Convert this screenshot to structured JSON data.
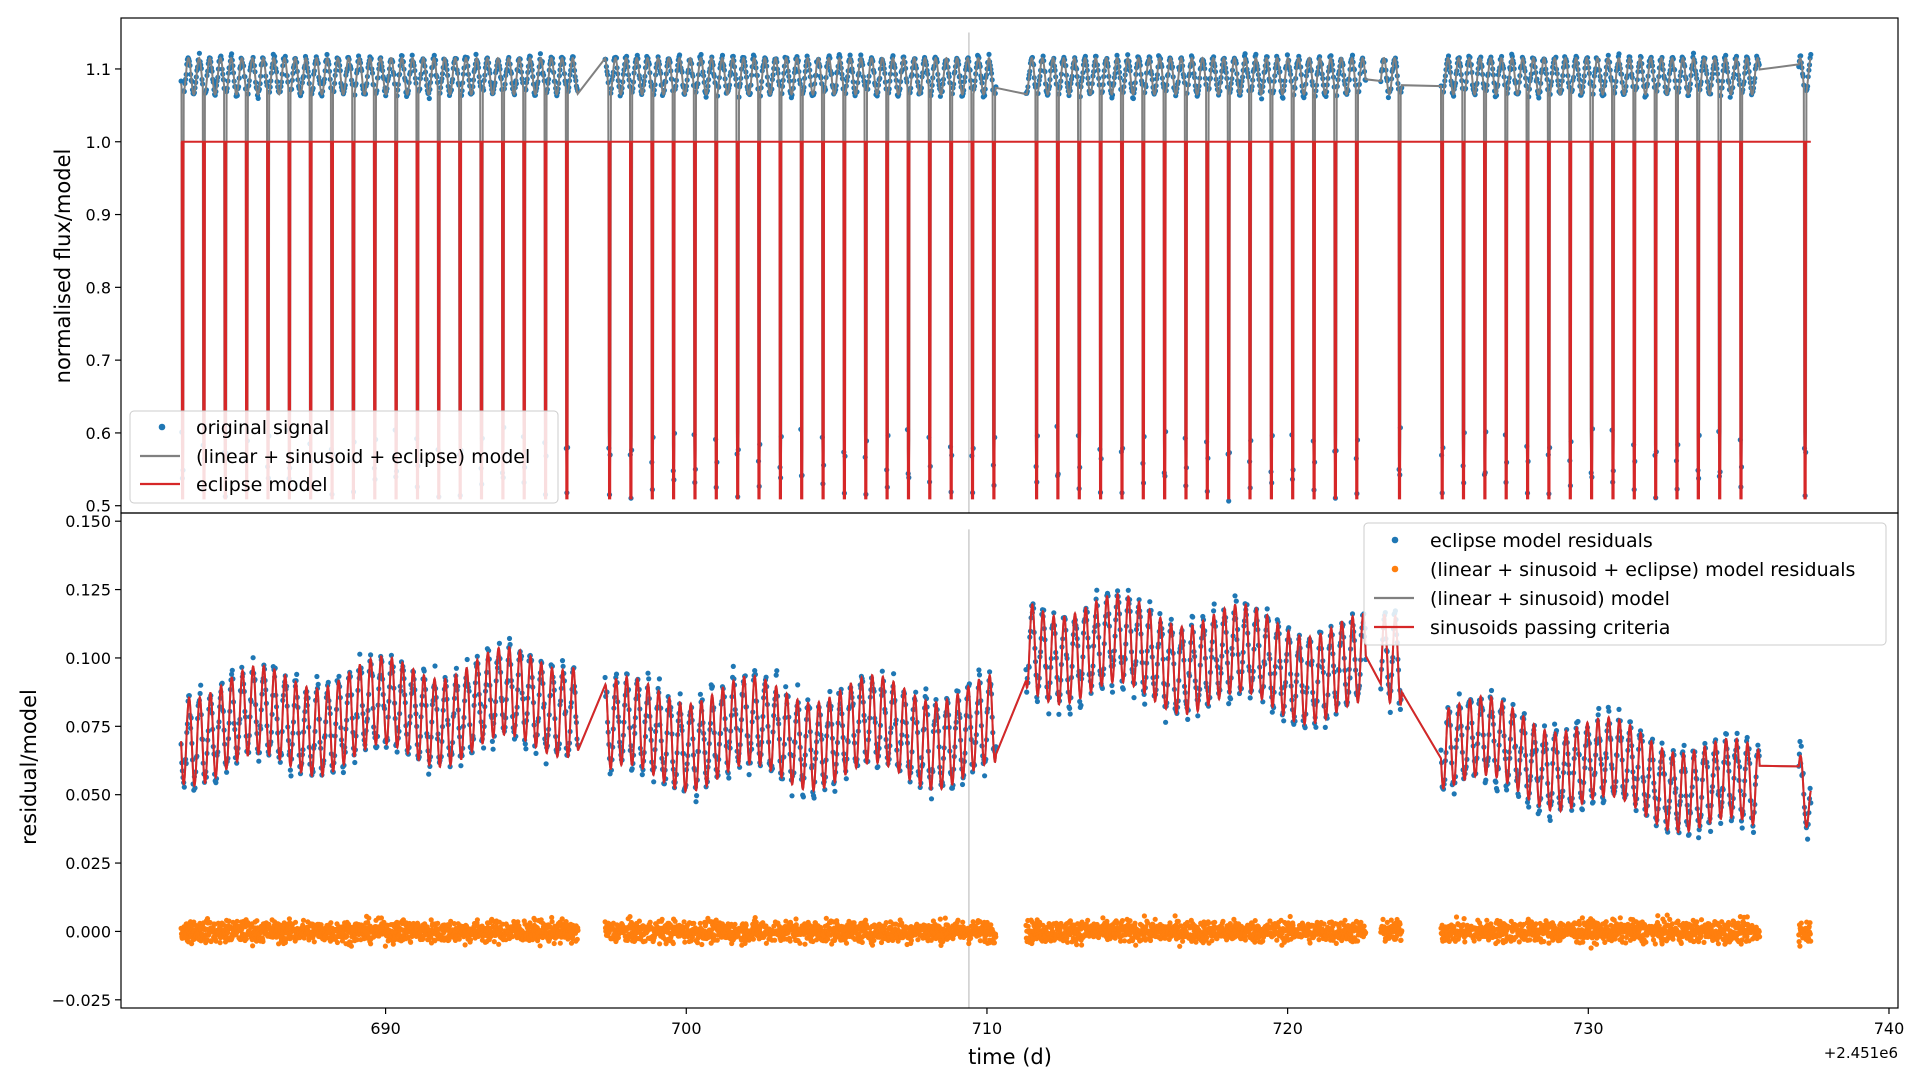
{
  "chart_data": [
    {
      "type": "scatter",
      "panel": "top",
      "title": "",
      "ylabel": "normalised flux/model",
      "xlabel": "",
      "xlim": [
        2451681.2,
        2451740.3
      ],
      "ylim": [
        0.49,
        1.17
      ],
      "xticks": [],
      "yticks": [
        0.5,
        0.6,
        0.7,
        0.8,
        0.9,
        1.0,
        1.1
      ],
      "ytick_labels": [
        "0.5",
        "0.6",
        "0.7",
        "0.8",
        "0.9",
        "1.0",
        "1.1"
      ],
      "grid": false,
      "legend_position": "lower-left",
      "eclipse_period_d": 0.71,
      "primary_depth_min": 0.51,
      "gaps_d": [
        [
          2451696.4,
          2451697.3
        ],
        [
          2451710.3,
          2451711.3
        ],
        [
          2451722.6,
          2451723.1
        ],
        [
          2451723.7,
          2451723.9
        ],
        [
          2451724.0,
          2451725.1
        ],
        [
          2451735.7,
          2451737.0
        ]
      ],
      "time_ranges_d": [
        [
          2451683.2,
          2451696.4
        ],
        [
          2451697.3,
          2451710.3
        ],
        [
          2451711.3,
          2451722.6
        ],
        [
          2451723.1,
          2451723.8
        ],
        [
          2451725.1,
          2451735.7
        ],
        [
          2451737.0,
          2451737.4
        ]
      ],
      "vertical_marker_x": 2451709.4,
      "series": [
        {
          "name": "original signal",
          "kind": "scatter",
          "color": "#1f77b4",
          "baseline": 1.09,
          "amplitude": 0.025
        },
        {
          "name": "(linear + sinusoid + eclipse) model",
          "kind": "line",
          "color": "#808080"
        },
        {
          "name": "eclipse model",
          "kind": "line",
          "color": "#d62728",
          "out_of_eclipse": 1.0
        }
      ]
    },
    {
      "type": "scatter",
      "panel": "bottom",
      "title": "",
      "ylabel": "residual/model",
      "xlabel": "time (d)",
      "x_offset_label": "+2.451e6",
      "xlim": [
        681.2,
        740.3
      ],
      "ylim": [
        -0.028,
        0.153
      ],
      "xticks": [
        690,
        700,
        710,
        720,
        730,
        740
      ],
      "xtick_labels": [
        "690",
        "700",
        "710",
        "720",
        "730",
        "740"
      ],
      "yticks": [
        -0.025,
        0.0,
        0.025,
        0.05,
        0.075,
        0.1,
        0.125,
        0.15
      ],
      "ytick_labels": [
        "−0.025",
        "0.000",
        "0.025",
        "0.050",
        "0.075",
        "0.100",
        "0.125",
        "0.150"
      ],
      "grid": false,
      "legend_position": "top-right",
      "vertical_marker_x": 709.4,
      "series": [
        {
          "name": "eclipse model residuals",
          "kind": "scatter",
          "color": "#1f77b4"
        },
        {
          "name": "(linear + sinusoid + eclipse) model residuals",
          "kind": "scatter",
          "color": "#ff7f0e",
          "mean": 0.0,
          "scatter": 0.004
        },
        {
          "name": "(linear + sinusoid) model",
          "kind": "line",
          "color": "#808080"
        },
        {
          "name": "sinusoids passing criteria",
          "kind": "line",
          "color": "#d62728"
        }
      ],
      "segment_baselines": [
        {
          "x": [
            683.2,
            696.4
          ],
          "y": [
            0.074,
            0.085
          ],
          "amplitude": 0.02
        },
        {
          "x": [
            697.3,
            710.3
          ],
          "y": [
            0.072,
            0.073
          ],
          "amplitude": 0.02
        },
        {
          "x": [
            711.3,
            722.6
          ],
          "y": [
            0.105,
            0.095
          ],
          "amplitude": 0.02
        },
        {
          "x": [
            723.1,
            723.8
          ],
          "y": [
            0.096,
            0.1
          ],
          "amplitude": 0.02
        },
        {
          "x": [
            725.1,
            735.7
          ],
          "y": [
            0.07,
            0.05
          ],
          "amplitude": 0.018
        },
        {
          "x": [
            737.0,
            737.4
          ],
          "y": [
            0.06,
            0.045
          ],
          "amplitude": 0.012
        }
      ]
    }
  ]
}
